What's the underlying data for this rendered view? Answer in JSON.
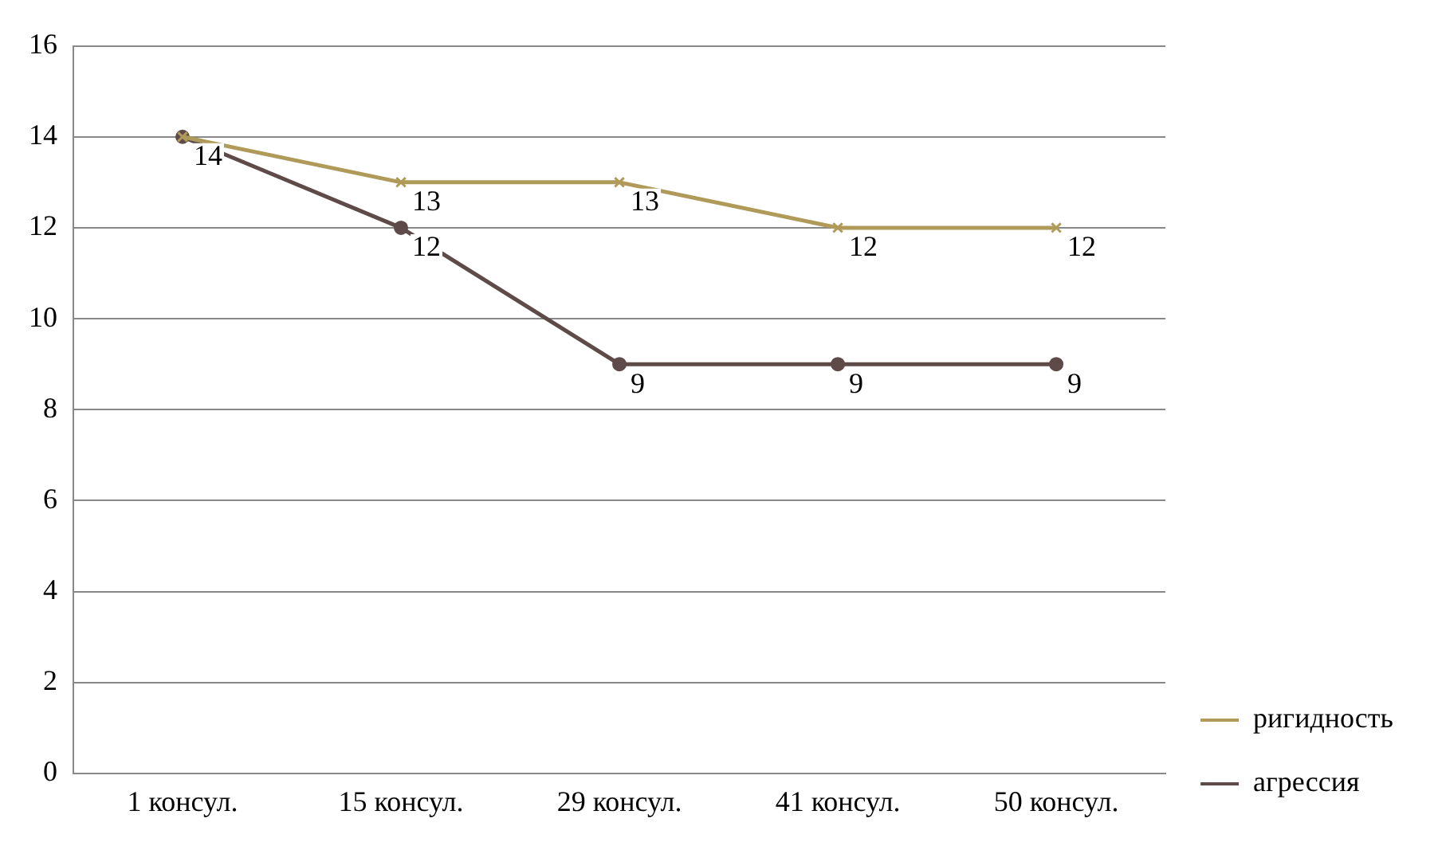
{
  "chart_data": {
    "type": "line",
    "categories": [
      "1 консул.",
      "15 консул.",
      "29 консул.",
      "41 консул.",
      "50 консул."
    ],
    "series": [
      {
        "name": "ригидность",
        "color": "#b09a5a",
        "values": [
          14,
          13,
          13,
          12,
          12
        ],
        "marker": "cross",
        "value_labels": [
          "14",
          "13",
          "13",
          "12",
          "12"
        ]
      },
      {
        "name": "агрессия",
        "color": "#5e4a48",
        "values": [
          14,
          12,
          9,
          9,
          9
        ],
        "marker": "circle",
        "value_labels": [
          null,
          "12",
          "9",
          "9",
          "9"
        ]
      }
    ],
    "ylim": [
      0,
      16
    ],
    "yticks": [
      0,
      2,
      4,
      6,
      8,
      10,
      12,
      14,
      16
    ],
    "grid": "y",
    "legend": "bottom right"
  }
}
